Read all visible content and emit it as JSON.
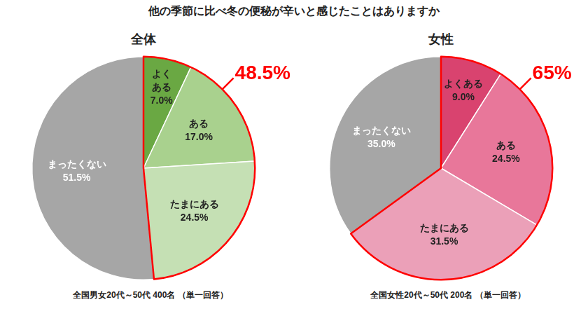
{
  "title": "他の季節に比べ冬の便秘が辛いと感じたことはありますか",
  "chart_data": [
    {
      "type": "pie",
      "title": "全体",
      "categories": [
        "よくある",
        "ある",
        "たまにある",
        "まったくない"
      ],
      "values": [
        7.0,
        17.0,
        24.5,
        51.5
      ],
      "value_labels": [
        "7.0%",
        "17.0%",
        "24.5%",
        "51.5%"
      ],
      "colors": [
        "#6aa843",
        "#a9d18e",
        "#c5e0b4",
        "#a6a6a6"
      ],
      "data_labels": true,
      "annotation": "48.5%",
      "caption": "全国男女20代～50代 400名 （単一回答）"
    },
    {
      "type": "pie",
      "title": "女性",
      "categories": [
        "よくある",
        "ある",
        "たまにある",
        "まったくない"
      ],
      "values": [
        9.0,
        24.5,
        31.5,
        35.0
      ],
      "value_labels": [
        "9.0%",
        "24.5%",
        "31.5%",
        "35.0%"
      ],
      "colors": [
        "#d9436f",
        "#e8779a",
        "#eba0b8",
        "#a6a6a6"
      ],
      "data_labels": true,
      "annotation": "65%",
      "caption": "全国女性20代～50代 200名 （単一回答）"
    }
  ]
}
